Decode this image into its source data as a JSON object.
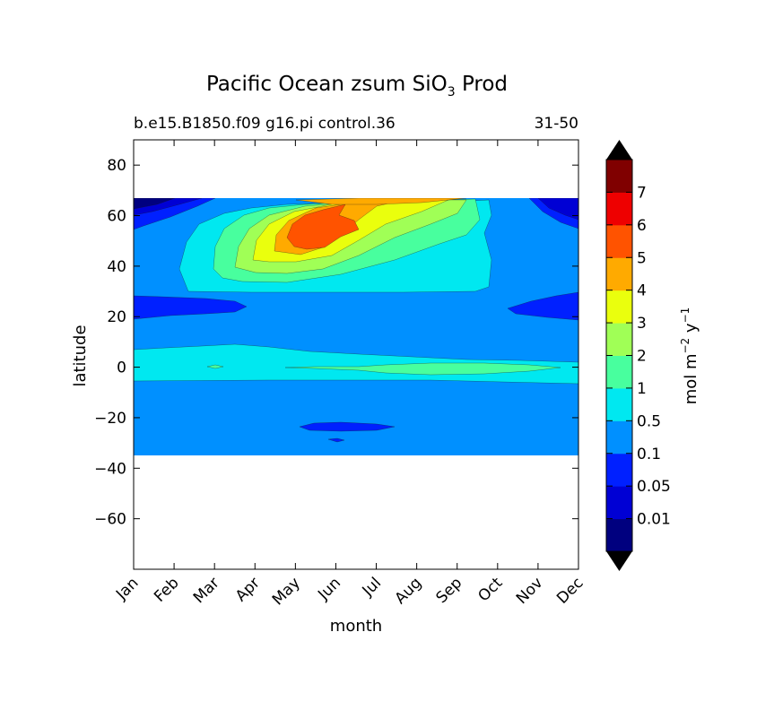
{
  "chart_data": {
    "type": "heatmap",
    "title": "Pacific Ocean zsum SiO",
    "title_subscript": "3",
    "title_suffix": "Prod",
    "subtitle_left": "b.e15.B1850.f09 g16.pi control.36",
    "subtitle_right": "31-50",
    "xlabel": "month",
    "ylabel": "latitude",
    "x_ticks": [
      "Jan",
      "Feb",
      "Mar",
      "Apr",
      "May",
      "Jun",
      "Jul",
      "Aug",
      "Sep",
      "Oct",
      "Nov",
      "Dec"
    ],
    "ylim": [
      -80,
      90
    ],
    "y_ticks": [
      -60,
      -40,
      -20,
      0,
      20,
      40,
      60,
      80
    ],
    "y_tick_labels": [
      "−60",
      "−40",
      "−20",
      "0",
      "20",
      "40",
      "60",
      "80"
    ],
    "data_lat_range": [
      -34,
      67
    ],
    "colorbar": {
      "label": "mol m",
      "label_exp1": "−2",
      "label_mid": "y",
      "label_exp2": "−1",
      "levels": [
        0,
        0.01,
        0.05,
        0.1,
        0.5,
        1,
        2,
        3,
        4,
        5,
        6,
        7,
        8
      ],
      "tick_labels": [
        "0.01",
        "0.05",
        "0.1",
        "0.5",
        "1",
        "2",
        "3",
        "4",
        "5",
        "6",
        "7"
      ],
      "colors": [
        "#00007f",
        "#0000d4",
        "#0020ff",
        "#0090ff",
        "#00e8f0",
        "#48ff9e",
        "#a0ff56",
        "#eaff0d",
        "#ffaa00",
        "#ff5300",
        "#ee0000",
        "#800000"
      ],
      "extend": "both",
      "under_color": "#000000",
      "over_color": "#000000"
    },
    "fields": [
      {
        "name": "background",
        "level": "0.1-0.5",
        "color": "#0090ff"
      },
      {
        "name": "band-20N-28N-winter",
        "level": "0.05-0.1",
        "color": "#0020ff"
      },
      {
        "name": "band-south-24S",
        "level": "0.05-0.1",
        "color": "#0020ff"
      },
      {
        "name": "equatorial-band",
        "level": "0.5-1",
        "color": "#00e8f0"
      },
      {
        "name": "equatorial-core",
        "level": "1-2",
        "color": "#48ff9e"
      },
      {
        "name": "north-bloom-0.5",
        "level": "0.5-1",
        "color": "#00e8f0"
      },
      {
        "name": "north-bloom-1",
        "level": "1-2",
        "color": "#48ff9e"
      },
      {
        "name": "north-bloom-2",
        "level": "2-3",
        "color": "#a0ff56"
      },
      {
        "name": "north-bloom-3",
        "level": "3-4",
        "color": "#eaff0d"
      },
      {
        "name": "north-bloom-4",
        "level": "4-5",
        "color": "#ffaa00"
      },
      {
        "name": "north-bloom-5",
        "level": "5-6",
        "color": "#ff5300"
      },
      {
        "name": "high-lat-winter-low",
        "level": "0.01-0.05",
        "color": "#0000d4"
      },
      {
        "name": "high-lat-winter-lowest",
        "level": "0-0.01",
        "color": "#00007f"
      }
    ]
  }
}
